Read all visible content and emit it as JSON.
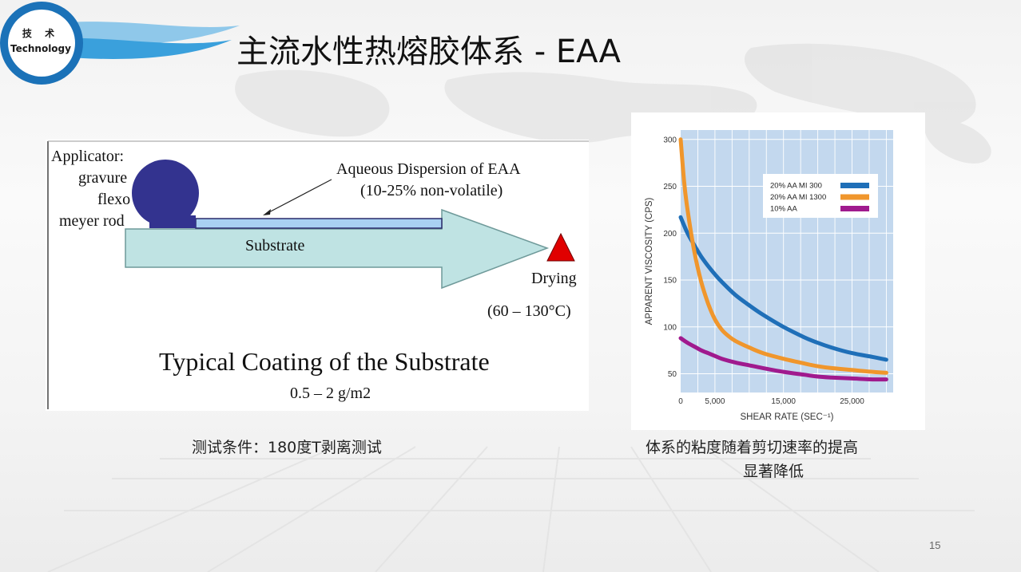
{
  "logo": {
    "line1": "技 术",
    "line2": "Technology"
  },
  "slide_title": "主流水性热熔胶体系 - EAA",
  "coating_diagram": {
    "applicator_lines": [
      "Applicator:",
      "gravure",
      "flexo",
      "meyer rod"
    ],
    "dispersion_line1": "Aqueous Dispersion of EAA",
    "dispersion_line2": "(10-25% non-volatile)",
    "substrate_label": "Substrate",
    "drying_label": "Drying",
    "drying_temp": "(60 – 130°C)",
    "caption_title": "Typical Coating of the Substrate",
    "caption_sub": "0.5 – 2 g/m2",
    "colors": {
      "roller": "#33338f",
      "arrow": "#bfe3e3",
      "film": "#a9d1f2",
      "triangle": "#e00000"
    }
  },
  "chart_data": {
    "type": "line",
    "xlabel": "SHEAR RATE (SEC⁻¹)",
    "ylabel": "APPARENT VISCOSITY (CPS)",
    "xlim": [
      0,
      31000
    ],
    "ylim": [
      30,
      310
    ],
    "x_ticks": [
      0,
      5000,
      15000,
      25000
    ],
    "x_tick_labels": [
      "0",
      "5,000",
      "15,000",
      "25,000"
    ],
    "y_ticks": [
      50,
      100,
      150,
      200,
      250,
      300
    ],
    "y_tick_labels": [
      "50",
      "100",
      "150",
      "200",
      "250",
      "300"
    ],
    "grid": true,
    "legend_position": "top-right",
    "background_color": "#c3d8ee",
    "series": [
      {
        "name": "20% AA MI 300",
        "color": "#1f6fb8",
        "x": [
          0,
          1000,
          2000,
          3000,
          4000,
          5000,
          6000,
          8000,
          10000,
          12000,
          15000,
          18000,
          20000,
          22000,
          25000,
          28000,
          30000
        ],
        "y": [
          217,
          200,
          187,
          175,
          165,
          156,
          148,
          134,
          123,
          113,
          100,
          89,
          83,
          78,
          72,
          68,
          65
        ]
      },
      {
        "name": "20% AA MI 1300",
        "color": "#f0962c",
        "x": [
          0,
          500,
          1000,
          2000,
          3000,
          4000,
          5000,
          6000,
          7000,
          8000,
          10000,
          12000,
          15000,
          18000,
          20000,
          22000,
          25000,
          28000,
          30000
        ],
        "y": [
          300,
          255,
          225,
          180,
          148,
          125,
          108,
          97,
          90,
          85,
          78,
          72,
          66,
          61,
          58,
          56,
          54,
          52,
          51
        ]
      },
      {
        "name": "10% AA",
        "color": "#a01a8e",
        "x": [
          0,
          1000,
          2000,
          3000,
          4000,
          5000,
          6000,
          8000,
          10000,
          12000,
          15000,
          18000,
          20000,
          22000,
          25000,
          28000,
          30000
        ],
        "y": [
          88,
          83,
          79,
          75,
          72,
          69,
          66,
          62,
          59,
          56,
          52,
          49,
          47,
          46,
          45,
          44,
          44
        ]
      }
    ]
  },
  "captions": {
    "left": "测试条件：180度T剥离测试",
    "right_line1": "体系的粘度随着剪切速率的提高",
    "right_line2": "显著降低"
  },
  "page_number": "15"
}
